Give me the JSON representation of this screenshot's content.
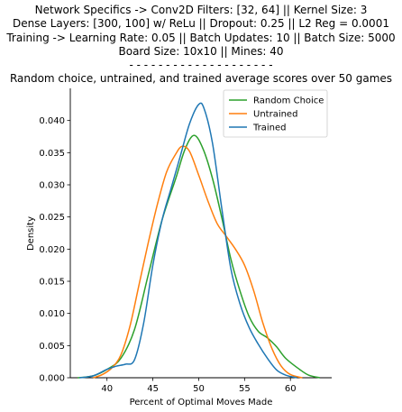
{
  "chart_data": {
    "type": "line",
    "title_lines": [
      "Network Specifics -> Conv2D Filters: [32, 64] || Kernel Size: 3",
      "Dense Layers: [300, 100] w/ ReLu || Dropout: 0.25  || L2 Reg = 0.0001",
      "Training -> Learning Rate: 0.05 || Batch Updates: 10 || Batch Size: 5000",
      "Board Size: 10x10 || Mines: 40",
      "- - - - - - - - - - - - - - - - - - - -",
      "Random choice, untrained, and trained average scores over 50 games"
    ],
    "xlabel": "Percent of Optimal Moves Made",
    "ylabel": "Density",
    "xlim": [
      36,
      64.5
    ],
    "ylim": [
      0,
      0.045
    ],
    "xticks": [
      40,
      45,
      50,
      55,
      60
    ],
    "yticks": [
      0.0,
      0.005,
      0.01,
      0.015,
      0.02,
      0.025,
      0.03,
      0.035,
      0.04
    ],
    "ytick_labels": [
      "0.000",
      "0.005",
      "0.010",
      "0.015",
      "0.020",
      "0.025",
      "0.030",
      "0.035",
      "0.040"
    ],
    "legend_position": "top-right",
    "series": [
      {
        "name": "Random Choice",
        "color": "#2ca02c",
        "points": [
          [
            36.8,
            0.0
          ],
          [
            38.5,
            0.0003
          ],
          [
            40,
            0.0013
          ],
          [
            41.5,
            0.003
          ],
          [
            43,
            0.0075
          ],
          [
            44.5,
            0.016
          ],
          [
            46,
            0.0245
          ],
          [
            47.5,
            0.031
          ],
          [
            48.5,
            0.0355
          ],
          [
            49.5,
            0.0377
          ],
          [
            50.5,
            0.0355
          ],
          [
            51.5,
            0.031
          ],
          [
            52.5,
            0.025
          ],
          [
            53.5,
            0.0185
          ],
          [
            54.5,
            0.0135
          ],
          [
            55.5,
            0.0095
          ],
          [
            56.5,
            0.0072
          ],
          [
            57.5,
            0.0062
          ],
          [
            58.5,
            0.0048
          ],
          [
            59.5,
            0.003
          ],
          [
            61,
            0.0013
          ],
          [
            62,
            0.0004
          ],
          [
            63.2,
            0.0
          ]
        ]
      },
      {
        "name": "Untrained",
        "color": "#ff7f0e",
        "points": [
          [
            38.5,
            0.0
          ],
          [
            39.5,
            0.0005
          ],
          [
            40.5,
            0.0015
          ],
          [
            41.5,
            0.0035
          ],
          [
            42.5,
            0.008
          ],
          [
            43.5,
            0.0145
          ],
          [
            44.5,
            0.021
          ],
          [
            45.5,
            0.027
          ],
          [
            46.5,
            0.032
          ],
          [
            47.5,
            0.0348
          ],
          [
            48.2,
            0.036
          ],
          [
            49,
            0.0352
          ],
          [
            50,
            0.0315
          ],
          [
            51,
            0.0275
          ],
          [
            52,
            0.024
          ],
          [
            53,
            0.022
          ],
          [
            54,
            0.02
          ],
          [
            55,
            0.0175
          ],
          [
            56,
            0.0135
          ],
          [
            57,
            0.0085
          ],
          [
            58,
            0.0045
          ],
          [
            59,
            0.0018
          ],
          [
            60,
            0.0005
          ],
          [
            61.3,
            0.0
          ]
        ]
      },
      {
        "name": "Trained",
        "color": "#1f77b4",
        "points": [
          [
            37,
            0.0
          ],
          [
            38.5,
            0.0003
          ],
          [
            40,
            0.0013
          ],
          [
            41,
            0.0018
          ],
          [
            42,
            0.0021
          ],
          [
            43,
            0.0028
          ],
          [
            44,
            0.0085
          ],
          [
            45,
            0.0175
          ],
          [
            46,
            0.0245
          ],
          [
            47,
            0.0295
          ],
          [
            48,
            0.0345
          ],
          [
            49,
            0.0395
          ],
          [
            50,
            0.0425
          ],
          [
            50.6,
            0.0418
          ],
          [
            51.5,
            0.0365
          ],
          [
            52.5,
            0.0265
          ],
          [
            53.5,
            0.017
          ],
          [
            54.5,
            0.0115
          ],
          [
            55.5,
            0.0078
          ],
          [
            56.5,
            0.0052
          ],
          [
            57.5,
            0.003
          ],
          [
            58.5,
            0.0012
          ],
          [
            59.5,
            0.0004
          ],
          [
            60.7,
            0.0
          ]
        ]
      }
    ]
  }
}
